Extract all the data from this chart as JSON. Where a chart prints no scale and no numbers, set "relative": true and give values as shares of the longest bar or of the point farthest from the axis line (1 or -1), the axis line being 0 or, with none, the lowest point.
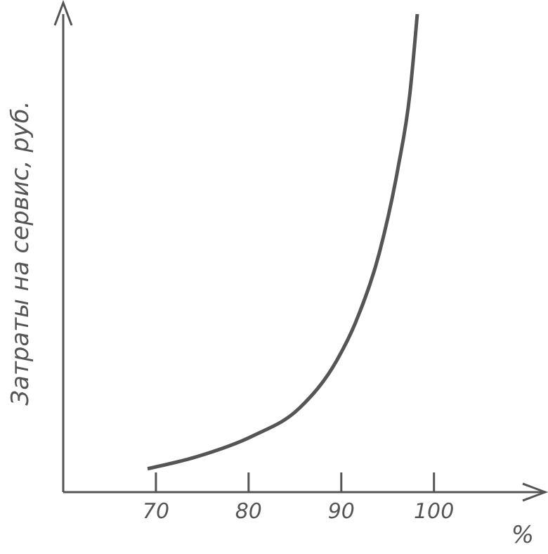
{
  "chart_data": {
    "type": "line",
    "xlabel": "%",
    "ylabel": "Затраты на сервис, руб.",
    "relative": true,
    "x": [
      69.1,
      74.4,
      80.5,
      85.5,
      89.5,
      91.5,
      94.1,
      96.1,
      97.4,
      98.2
    ],
    "series": [
      {
        "color": "#555555",
        "values": [
          0.049,
          0.074,
          0.118,
          0.176,
          0.275,
          0.353,
          0.5,
          0.676,
          0.833,
          1
        ]
      }
    ],
    "xlim": [
      60,
      112
    ],
    "xticks": [
      70,
      80,
      90,
      100
    ],
    "grid": false,
    "legend": false,
    "marker": "none",
    "line_style": "solid"
  }
}
